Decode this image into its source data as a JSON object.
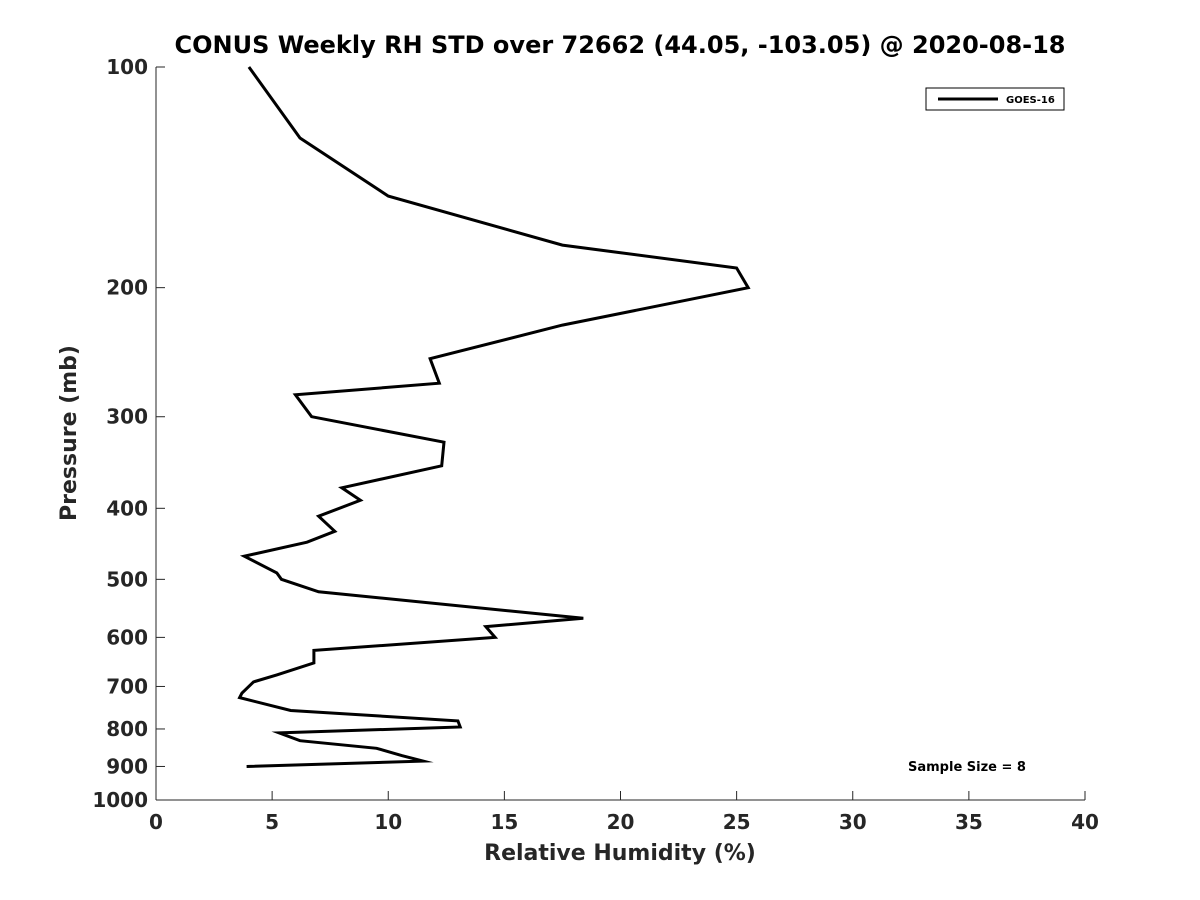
{
  "chart_data": {
    "type": "line",
    "title": "CONUS Weekly RH STD over 72662 (44.05, -103.05) @ 2020-08-18",
    "xlabel": "Relative Humidity (%)",
    "ylabel": "Pressure (mb)",
    "xlim": [
      0,
      40
    ],
    "ylim": [
      100,
      1000
    ],
    "y_scale": "log",
    "y_reversed": true,
    "x_ticks": [
      0,
      5,
      10,
      15,
      20,
      25,
      30,
      35,
      40
    ],
    "y_ticks": [
      100,
      200,
      300,
      400,
      500,
      600,
      700,
      800,
      900,
      1000
    ],
    "grid": false,
    "legend_position": "top-right",
    "series": [
      {
        "name": "GOES-16",
        "color": "#000000",
        "points": [
          [
            4.0,
            100
          ],
          [
            6.2,
            125
          ],
          [
            10.0,
            150
          ],
          [
            17.5,
            175
          ],
          [
            25.0,
            188
          ],
          [
            25.5,
            200
          ],
          [
            17.5,
            225
          ],
          [
            11.8,
            250
          ],
          [
            12.2,
            270
          ],
          [
            6.0,
            280
          ],
          [
            6.7,
            300
          ],
          [
            12.4,
            325
          ],
          [
            12.3,
            350
          ],
          [
            8.0,
            375
          ],
          [
            8.8,
            390
          ],
          [
            7.0,
            410
          ],
          [
            7.7,
            430
          ],
          [
            6.5,
            445
          ],
          [
            3.8,
            465
          ],
          [
            5.2,
            490
          ],
          [
            5.4,
            500
          ],
          [
            7.0,
            520
          ],
          [
            18.4,
            565
          ],
          [
            14.2,
            580
          ],
          [
            14.6,
            600
          ],
          [
            6.8,
            625
          ],
          [
            6.8,
            650
          ],
          [
            5.2,
            675
          ],
          [
            4.2,
            690
          ],
          [
            3.7,
            715
          ],
          [
            3.6,
            725
          ],
          [
            5.8,
            755
          ],
          [
            13.0,
            780
          ],
          [
            13.1,
            795
          ],
          [
            5.3,
            810
          ],
          [
            6.2,
            830
          ],
          [
            9.5,
            850
          ],
          [
            10.6,
            870
          ],
          [
            11.5,
            885
          ],
          [
            3.9,
            900
          ]
        ]
      }
    ],
    "annotations": [
      "Sample Size = 8"
    ]
  }
}
